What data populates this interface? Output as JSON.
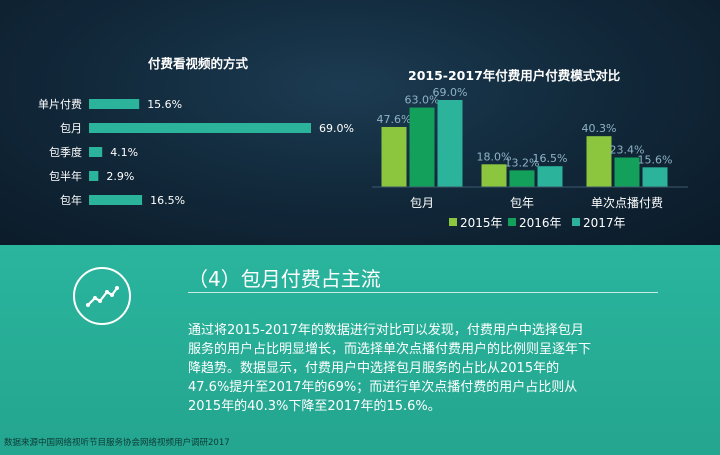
{
  "chart_data": [
    {
      "type": "bar",
      "orientation": "horizontal",
      "title": "付费看视频的方式",
      "categories": [
        "单片付费",
        "包月",
        "包季度",
        "包半年",
        "包年"
      ],
      "values": [
        15.6,
        69.0,
        4.1,
        2.9,
        16.5
      ],
      "value_labels": [
        "15.6%",
        "69.0%",
        "4.1%",
        "2.9%",
        "16.5%"
      ],
      "xlim": [
        0,
        69
      ],
      "grid": false,
      "colors": {
        "bar": "#2bb39b",
        "text": "#ffffff"
      }
    },
    {
      "type": "bar",
      "title": "2015-2017年付费用户付费模式对比",
      "categories": [
        "包月",
        "包年",
        "单次点播付费"
      ],
      "series": [
        {
          "name": "2015年",
          "values": [
            47.6,
            18.0,
            40.3
          ],
          "labels": [
            "47.6%",
            "18.0%",
            "40.3%"
          ],
          "color": "#8cc63f"
        },
        {
          "name": "2016年",
          "values": [
            63.0,
            13.2,
            23.4
          ],
          "labels": [
            "63.0%",
            "13.2%",
            "23.4%"
          ],
          "color": "#13a05a"
        },
        {
          "name": "2017年",
          "values": [
            69.0,
            16.5,
            15.6
          ],
          "labels": [
            "69.0%",
            "16.5%",
            "15.6%"
          ],
          "color": "#2bb39b"
        }
      ],
      "ylim": [
        0,
        69
      ],
      "grid": false,
      "legend_position": "bottom"
    }
  ],
  "section": {
    "title": "（4）包月付费占主流",
    "icon": "trend-line-icon",
    "lines": [
      "通过将2015-2017年的数据进行对比可以发现，付费用户中选择包月",
      "服务的用户占比明显增长，而选择单次点播付费用户的比例则呈逐年下",
      "降趋势。数据显示，付费用户中选择包月服务的占比从2015年的",
      "47.6%提升至2017年的69%；而进行单次点播付费的用户占比则从",
      "2015年的40.3%下降至2017年的15.6%。"
    ]
  },
  "source": "数据来源中国网络视听节目服务协会网络视频用户调研2017",
  "colors": {
    "top_bg": "#122a3c",
    "bottom_bg": "#26ad96",
    "accent": "#2bb39b"
  }
}
